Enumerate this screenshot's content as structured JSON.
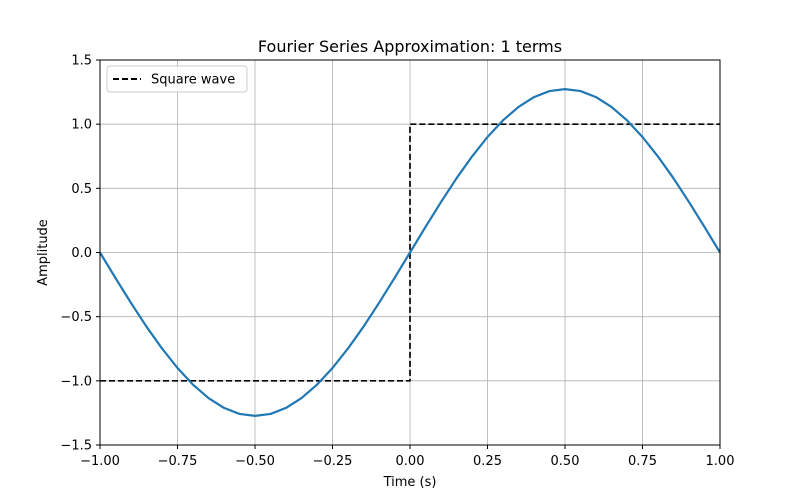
{
  "chart_data": {
    "type": "line",
    "title": "Fourier Series Approximation: 1 terms",
    "xlabel": "Time (s)",
    "ylabel": "Amplitude",
    "xlim": [
      -1.0,
      1.0
    ],
    "ylim": [
      -1.5,
      1.5
    ],
    "x_ticks": [
      -1.0,
      -0.75,
      -0.5,
      -0.25,
      0.0,
      0.25,
      0.5,
      0.75,
      1.0
    ],
    "x_tick_labels": [
      "−1.00",
      "−0.75",
      "−0.50",
      "−0.25",
      "0.00",
      "0.25",
      "0.50",
      "0.75",
      "1.00"
    ],
    "y_ticks": [
      -1.5,
      -1.0,
      -0.5,
      0.0,
      0.5,
      1.0,
      1.5
    ],
    "y_tick_labels": [
      "−1.5",
      "−1.0",
      "−0.5",
      "0.0",
      "0.5",
      "1.0",
      "1.5"
    ],
    "grid": true,
    "legend_position": "top-left",
    "series": [
      {
        "name": "Square wave",
        "style": "dashed",
        "color": "#000000",
        "x": [
          -1.0,
          0.0,
          0.0,
          1.0
        ],
        "y": [
          -1.0,
          -1.0,
          1.0,
          1.0
        ]
      },
      {
        "style": "solid",
        "color": "#1f77b4",
        "x": [
          -1.0,
          -0.95,
          -0.9,
          -0.85,
          -0.8,
          -0.75,
          -0.7,
          -0.65,
          -0.6,
          -0.55,
          -0.5,
          -0.45,
          -0.4,
          -0.35,
          -0.3,
          -0.25,
          -0.2,
          -0.15,
          -0.1,
          -0.05,
          0.0,
          0.05,
          0.1,
          0.15,
          0.2,
          0.25,
          0.3,
          0.35,
          0.4,
          0.45,
          0.5,
          0.55,
          0.6,
          0.65,
          0.7,
          0.75,
          0.8,
          0.85,
          0.9,
          0.95,
          1.0
        ],
        "y": [
          0.0,
          -0.199,
          -0.393,
          -0.578,
          -0.748,
          -0.9,
          -1.03,
          -1.134,
          -1.211,
          -1.258,
          -1.273,
          -1.258,
          -1.211,
          -1.134,
          -1.03,
          -0.9,
          -0.748,
          -0.578,
          -0.393,
          -0.199,
          0.0,
          0.199,
          0.393,
          0.578,
          0.748,
          0.9,
          1.03,
          1.134,
          1.211,
          1.258,
          1.273,
          1.258,
          1.211,
          1.134,
          1.03,
          0.9,
          0.748,
          0.578,
          0.393,
          0.199,
          0.0
        ]
      }
    ]
  }
}
